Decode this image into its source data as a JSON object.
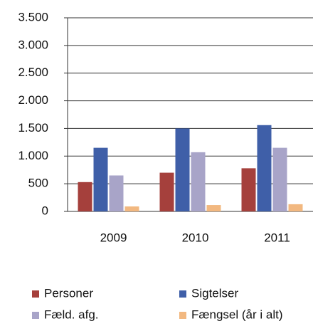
{
  "chart_data": {
    "type": "bar",
    "categories": [
      "2009",
      "2010",
      "2011"
    ],
    "series": [
      {
        "name": "Personer",
        "color": "#a5403c",
        "values": [
          530,
          700,
          780
        ]
      },
      {
        "name": "Sigtelser",
        "color": "#3f5fa8",
        "values": [
          1150,
          1500,
          1560
        ]
      },
      {
        "name": "Fæld. afg.",
        "color": "#a8a4c8",
        "values": [
          650,
          1070,
          1150
        ]
      },
      {
        "name": "Fængsel (år i alt)",
        "color": "#f2b880",
        "values": [
          90,
          115,
          130
        ]
      }
    ],
    "ylim": [
      0,
      3500
    ],
    "yticks": [
      0,
      500,
      {
        "value": 1000,
        "label": "1.000"
      },
      {
        "value": 1500,
        "label": "1.500"
      },
      {
        "value": 2000,
        "label": "2.000"
      },
      {
        "value": 2500,
        "label": "2.500"
      },
      {
        "value": 3000,
        "label": "3.000"
      },
      {
        "value": 3500,
        "label": "3.500"
      }
    ],
    "grid": true
  }
}
